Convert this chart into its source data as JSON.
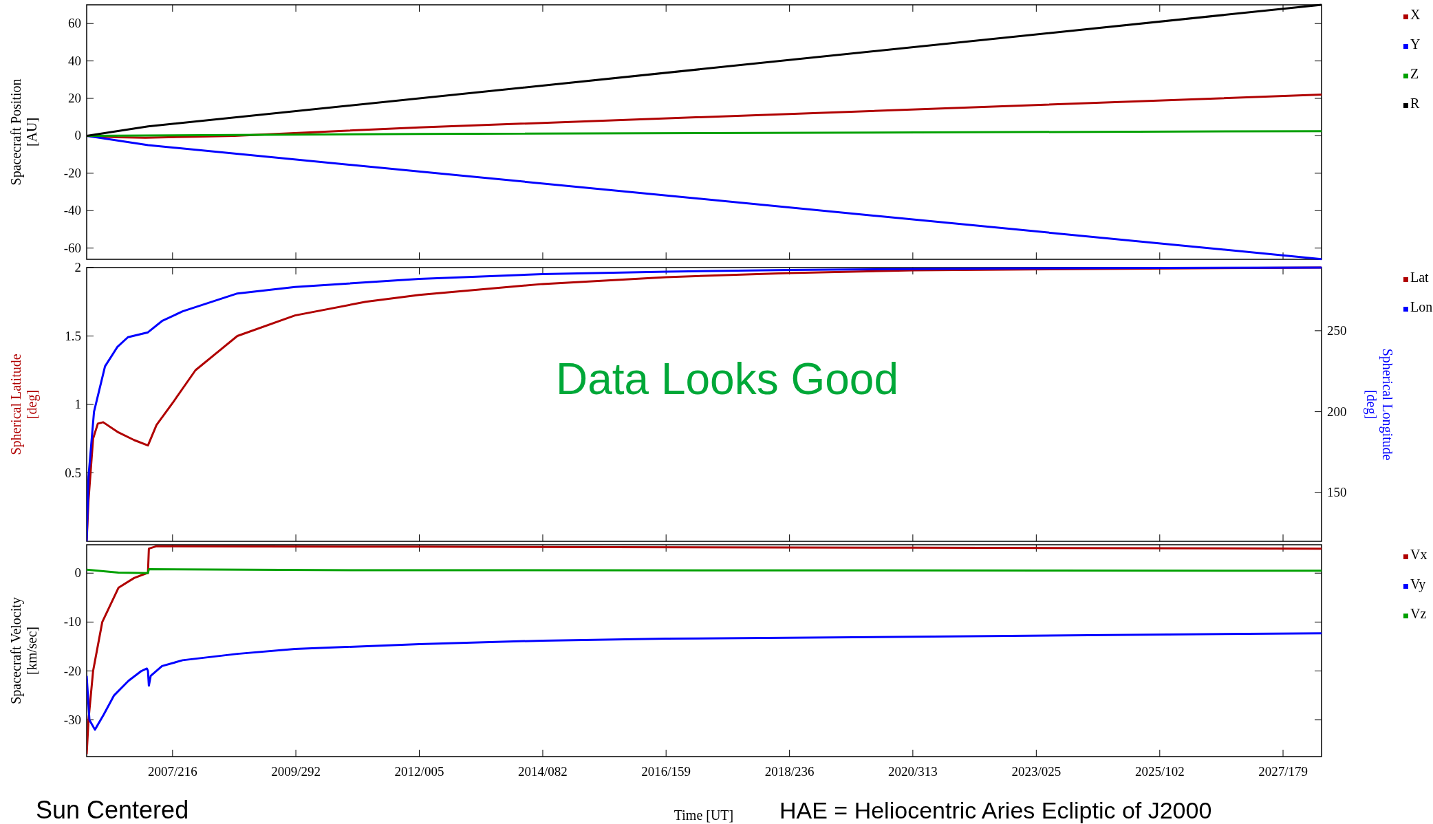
{
  "chart_data": [
    {
      "type": "line",
      "ylabel": "Spacecraft Position\n[AU]",
      "xlim": [
        "2006-01-19",
        "2028-03-06"
      ],
      "xticks": [
        {
          "value": "2007-08-04",
          "label": null
        },
        {
          "value": "2009-10-19",
          "label": null
        },
        {
          "value": "2012-01-05",
          "label": null
        },
        {
          "value": "2014-03-23",
          "label": null
        },
        {
          "value": "2016-06-07",
          "label": null
        },
        {
          "value": "2018-08-24",
          "label": null
        },
        {
          "value": "2020-11-08",
          "label": null
        },
        {
          "value": "2023-01-25",
          "label": null
        },
        {
          "value": "2025-04-12",
          "label": null
        },
        {
          "value": "2027-06-28",
          "label": null
        }
      ],
      "ylim": [
        -66,
        70
      ],
      "yticks": [
        -60,
        -40,
        -20,
        0,
        20,
        40,
        60
      ],
      "tick_labels": "y",
      "legend": "top right",
      "series": [
        {
          "name": "X",
          "color": "#b00000",
          "x": [
            "2006-01-19",
            "2006-08-08",
            "2007-02-06",
            "2008-01-01",
            "2008-09-13",
            "2012-01-05",
            "2028-03-06"
          ],
          "values": [
            0,
            -0.8,
            -1.0,
            -0.5,
            0,
            4.5,
            22
          ]
        },
        {
          "name": "Y",
          "color": "#0000ff",
          "x": [
            "2006-01-19",
            "2007-02-25",
            "2028-03-06"
          ],
          "values": [
            0,
            -5,
            -65.9
          ]
        },
        {
          "name": "Z",
          "color": "#00a000",
          "x": [
            "2006-01-19",
            "2012-01-05",
            "2028-03-06"
          ],
          "values": [
            0,
            1,
            2.5
          ]
        },
        {
          "name": "R",
          "color": "#000000",
          "x": [
            "2006-01-19",
            "2007-02-25",
            "2028-03-06"
          ],
          "values": [
            0,
            5,
            70
          ]
        }
      ]
    },
    {
      "type": "line",
      "ylabel": "Spherical Latitude\n[deg]",
      "y2label": "Spherical Longitude\n[deg]",
      "annotations": [
        "Data Looks Good"
      ],
      "xlim": [
        "2006-01-19",
        "2028-03-06"
      ],
      "xticks": [
        {
          "value": "2007-08-04",
          "label": null
        },
        {
          "value": "2009-10-19",
          "label": null
        },
        {
          "value": "2012-01-05",
          "label": null
        },
        {
          "value": "2014-03-23",
          "label": null
        },
        {
          "value": "2016-06-07",
          "label": null
        },
        {
          "value": "2018-08-24",
          "label": null
        },
        {
          "value": "2020-11-08",
          "label": null
        },
        {
          "value": "2023-01-25",
          "label": null
        },
        {
          "value": "2025-04-12",
          "label": null
        },
        {
          "value": "2027-06-28",
          "label": null
        }
      ],
      "ylim": [
        0,
        2
      ],
      "yticks": [
        0.5,
        1,
        1.5,
        2
      ],
      "y2lim": [
        120,
        289
      ],
      "y2ticks": [
        150,
        200,
        250
      ],
      "tick_labels": "y",
      "legend": "top right",
      "series": [
        {
          "name": "Lat",
          "color": "#b00000",
          "x": [
            "2006-01-19",
            "2006-01-31",
            "2006-03-02",
            "2006-04-02",
            "2006-05-07",
            "2006-08-08",
            "2006-11-25",
            "2007-02-24",
            "2007-04-21",
            "2007-08-10",
            "2008-01-01",
            "2008-10-01",
            "2009-10-13",
            "2011-01-19",
            "2012-01-05",
            "2014-03-22",
            "2016-06-07",
            "2018-08-22",
            "2020-11-14",
            "2024-02-24",
            "2028-03-06"
          ],
          "values": [
            0,
            0.3,
            0.75,
            0.86,
            0.87,
            0.8,
            0.74,
            0.7,
            0.85,
            1.02,
            1.25,
            1.5,
            1.65,
            1.75,
            1.8,
            1.88,
            1.93,
            1.96,
            1.98,
            1.99,
            2.0
          ]
        },
        {
          "name": "Lon",
          "color": "#0000ff",
          "axis": "y2",
          "x": [
            "2006-01-19",
            "2006-01-31",
            "2006-03-08",
            "2006-05-19",
            "2006-08-08",
            "2006-10-16",
            "2007-02-24",
            "2007-05-27",
            "2007-10-09",
            "2008-10-01",
            "2009-10-13",
            "2012-01-05",
            "2014-03-22",
            "2016-06-07",
            "2018-08-22",
            "2022-07-05",
            "2028-03-06"
          ],
          "values": [
            120,
            160,
            200,
            228,
            240,
            246,
            249,
            256,
            262,
            273,
            277,
            282,
            285,
            286.5,
            287.5,
            288.5,
            289
          ]
        }
      ]
    },
    {
      "type": "line",
      "ylabel": "Spacecraft Velocity\n[km/sec]",
      "xlabel": "Time [UT]",
      "annotations": [
        "Sun Centered",
        "HAE = Heliocentric Aries Ecliptic of J2000"
      ],
      "xlim": [
        "2006-01-19",
        "2028-03-06"
      ],
      "xticks": [
        {
          "value": "2007-08-04",
          "label": "2007/216"
        },
        {
          "value": "2009-10-19",
          "label": "2009/292"
        },
        {
          "value": "2012-01-05",
          "label": "2012/005"
        },
        {
          "value": "2014-03-23",
          "label": "2014/082"
        },
        {
          "value": "2016-06-07",
          "label": "2016/159"
        },
        {
          "value": "2018-08-24",
          "label": "2018/236"
        },
        {
          "value": "2020-11-08",
          "label": "2020/313"
        },
        {
          "value": "2023-01-25",
          "label": "2023/025"
        },
        {
          "value": "2025-04-12",
          "label": "2025/102"
        },
        {
          "value": "2027-06-28",
          "label": "2027/179"
        }
      ],
      "ylim": [
        -37.5,
        5.8
      ],
      "yticks": [
        -30,
        -20,
        -10,
        0
      ],
      "legend": "top right",
      "series": [
        {
          "name": "Vx",
          "color": "#b00000",
          "x": [
            "2006-01-19",
            "2006-01-31",
            "2006-03-02",
            "2006-05-01",
            "2006-08-15",
            "2006-11-25",
            "2007-02-17",
            "2007-02-24",
            "2007-03-02",
            "2007-04-21",
            "2012-01-05",
            "2020-11-14",
            "2028-03-06"
          ],
          "values": [
            -37,
            -30,
            -20,
            -10,
            -3,
            -1,
            0,
            0,
            5,
            5.5,
            5.4,
            5.2,
            5.0
          ]
        },
        {
          "name": "Vy",
          "color": "#0000ff",
          "x": [
            "2006-01-19",
            "2006-02-06",
            "2006-03-14",
            "2006-05-09",
            "2006-07-17",
            "2006-10-20",
            "2007-01-12",
            "2007-02-17",
            "2007-02-24",
            "2007-03-02",
            "2007-03-14",
            "2007-05-27",
            "2007-10-09",
            "2008-10-01",
            "2009-10-13",
            "2012-01-05",
            "2014-03-22",
            "2016-06-07",
            "2020-11-14",
            "2025-10-12",
            "2028-03-06"
          ],
          "values": [
            -21,
            -30,
            -32,
            -29,
            -25,
            -22,
            -20,
            -19.5,
            -20,
            -23,
            -21,
            -19,
            -17.8,
            -16.5,
            -15.5,
            -14.5,
            -13.8,
            -13.4,
            -13,
            -12.5,
            -12.3
          ]
        },
        {
          "name": "Vz",
          "color": "#00a000",
          "x": [
            "2006-01-19",
            "2006-08-15",
            "2007-02-24",
            "2007-03-02",
            "2011-01-19",
            "2028-03-06"
          ],
          "values": [
            0.7,
            0.1,
            0,
            0.8,
            0.6,
            0.5
          ]
        }
      ]
    }
  ]
}
